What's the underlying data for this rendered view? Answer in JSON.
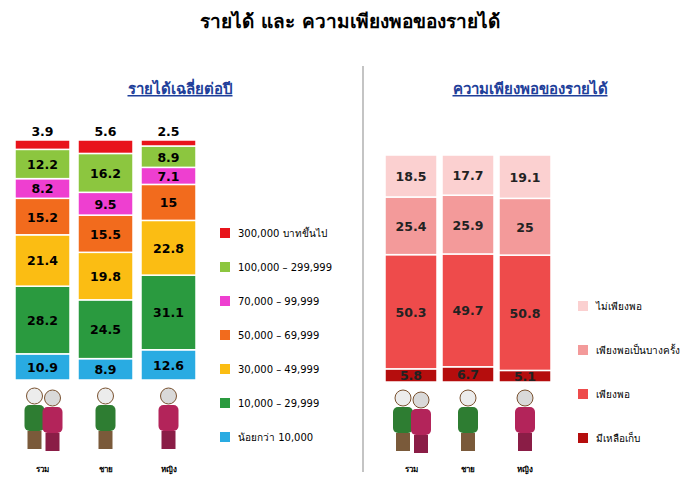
{
  "title": "รายได้ และ ความเพียงพอของรายได้",
  "chart_data": [
    {
      "type": "bar",
      "title": "รายได้เฉลี่ยต่อปี",
      "stacked": true,
      "data_labels": true,
      "tick_labels": false,
      "legend": "right",
      "categories": [
        "รวม",
        "ชาย",
        "หญิง"
      ],
      "ylim": [
        0,
        100
      ],
      "series": [
        {
          "name": "น้อยกว่า 10,000",
          "color": "#29abe2",
          "values": [
            10.9,
            8.9,
            12.6
          ]
        },
        {
          "name": "10,000 – 29,999",
          "color": "#2a9a3f",
          "values": [
            28.2,
            24.5,
            31.1
          ]
        },
        {
          "name": "30,000 – 49,999",
          "color": "#fbbd13",
          "values": [
            21.4,
            19.8,
            22.8
          ]
        },
        {
          "name": "50,000 – 69,999",
          "color": "#f26b1d",
          "values": [
            15.2,
            15.5,
            15.0
          ]
        },
        {
          "name": "70,000 – 99,999",
          "color": "#ee3fd0",
          "values": [
            8.2,
            9.5,
            7.1
          ]
        },
        {
          "name": "100,000 – 299,999",
          "color": "#8cc63f",
          "values": [
            12.2,
            16.2,
            8.9
          ]
        },
        {
          "name": "300,000 บาทขึ้นไป",
          "color": "#e8141b",
          "values": [
            3.9,
            5.6,
            2.5
          ]
        }
      ]
    },
    {
      "type": "bar",
      "title": "ความเพียงพอของรายได้",
      "stacked": true,
      "data_labels": true,
      "tick_labels": false,
      "legend": "right",
      "categories": [
        "รวม",
        "ชาย",
        "หญิง"
      ],
      "ylim": [
        0,
        100
      ],
      "series": [
        {
          "name": "มีเหลือเก็บ",
          "color": "#b50d0d",
          "values": [
            5.8,
            6.7,
            5.1
          ]
        },
        {
          "name": "เพียงพอ",
          "color": "#ee4b4b",
          "values": [
            50.3,
            49.7,
            50.8
          ]
        },
        {
          "name": "เพียงพอเป็นบางครั้ง",
          "color": "#f39a9a",
          "values": [
            25.4,
            25.9,
            25.0
          ]
        },
        {
          "name": "ไม่เพียงพอ",
          "color": "#fbd0d0",
          "values": [
            18.5,
            17.7,
            19.1
          ]
        }
      ]
    }
  ]
}
